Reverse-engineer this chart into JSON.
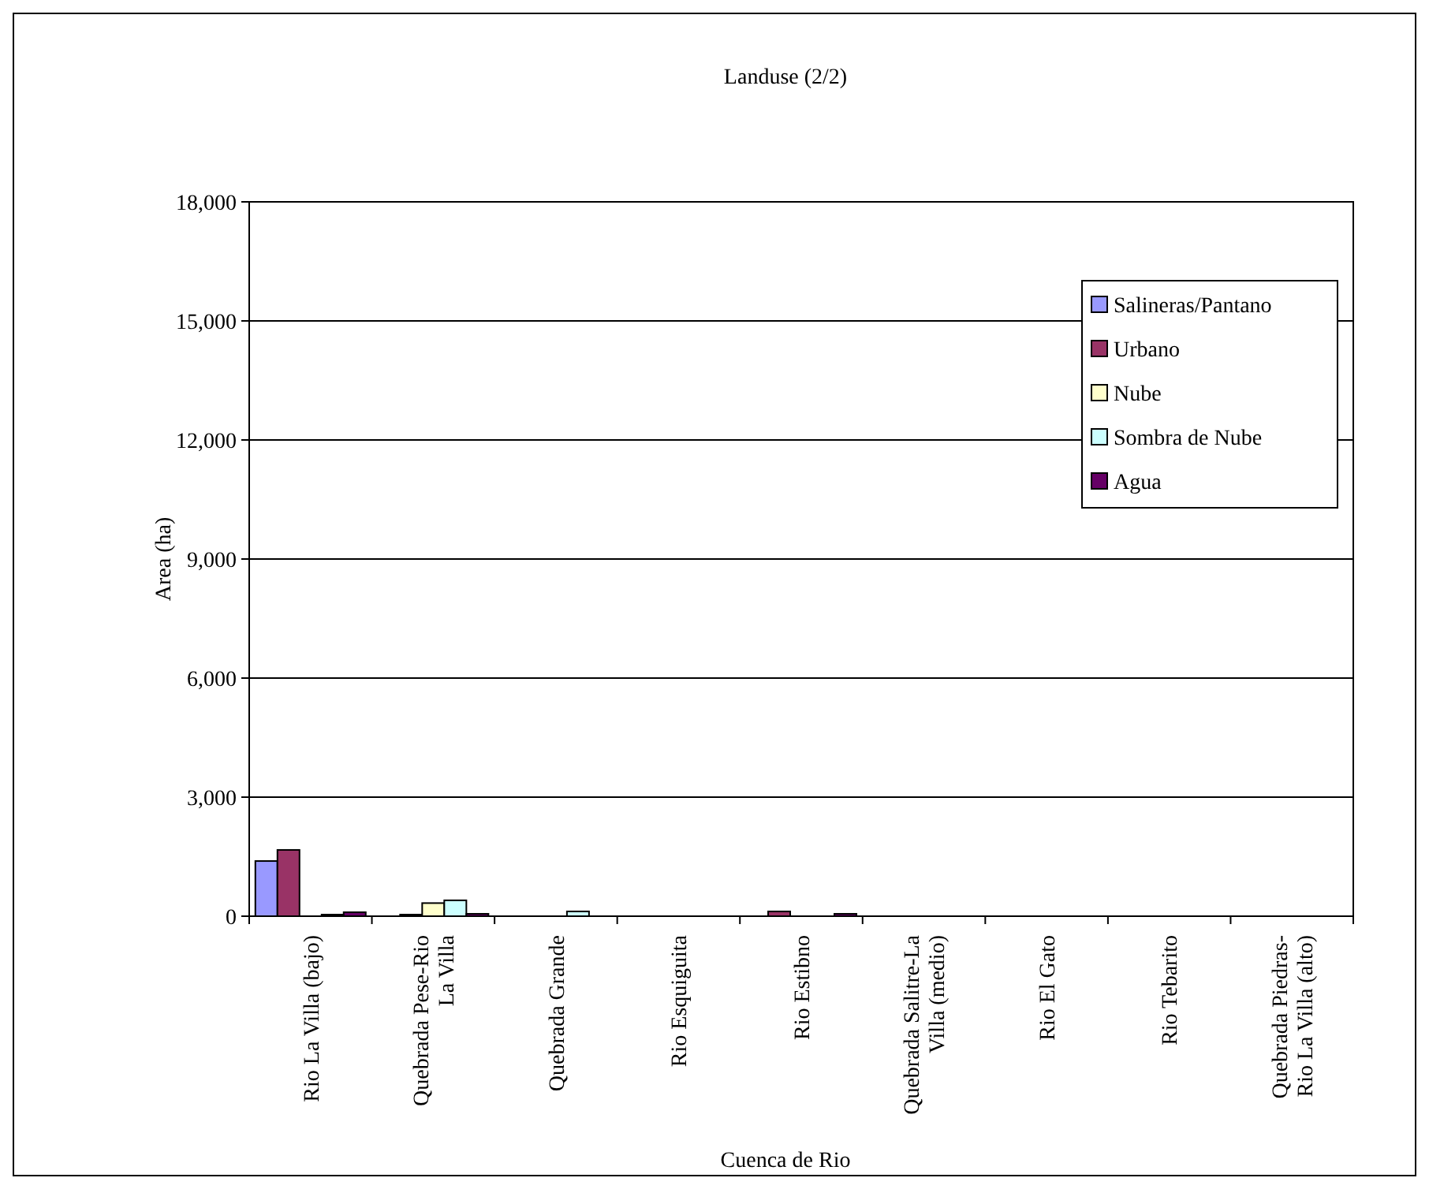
{
  "chart_data": {
    "type": "bar",
    "title": "Landuse (2/2)",
    "xlabel": "Cuenca de Rio",
    "ylabel": "Area (ha)",
    "categories": [
      "Rio La Villa (bajo)",
      "Quebrada Pese-Rio La Villa",
      "Quebrada Grande",
      "Rio Esquiguita",
      "Rio Estibno",
      "Quebrada Salitre-La Villa (medio)",
      "Rio El Gato",
      "Rio Tebarito",
      "Quebrada Piedras-Rio La Villa (alto)"
    ],
    "series": [
      {
        "name": "Salineras/Pantano",
        "color": "#9999ff",
        "values": [
          1390,
          0,
          0,
          0,
          0,
          0,
          0,
          0,
          0
        ]
      },
      {
        "name": "Urbano",
        "color": "#993366",
        "values": [
          1670,
          40,
          0,
          0,
          120,
          0,
          0,
          0,
          0
        ]
      },
      {
        "name": "Nube",
        "color": "#ffffcc",
        "values": [
          null,
          330,
          0,
          0,
          0,
          0,
          0,
          0,
          0
        ]
      },
      {
        "name": "Sombra de Nube",
        "color": "#ccffff",
        "values": [
          40,
          400,
          120,
          0,
          0,
          0,
          0,
          0,
          0
        ]
      },
      {
        "name": "Agua",
        "color": "#660066",
        "values": [
          100,
          60,
          0,
          0,
          60,
          0,
          0,
          0,
          0
        ]
      }
    ],
    "ylim": [
      0,
      18000
    ],
    "yticks": [
      {
        "value": 0,
        "label": "0"
      },
      {
        "value": 3000,
        "label": "3,000"
      },
      {
        "value": 6000,
        "label": "6,000"
      },
      {
        "value": 9000,
        "label": "9,000"
      },
      {
        "value": 12000,
        "label": "12,000"
      },
      {
        "value": 15000,
        "label": "15,000"
      },
      {
        "value": 18000,
        "label": "18,000"
      }
    ],
    "grid": "y",
    "legend": "top right"
  }
}
